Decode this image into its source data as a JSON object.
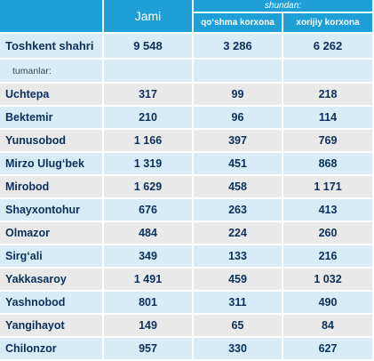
{
  "header": {
    "jami": "Jami",
    "shundan": "shundan:",
    "col_qoshma": "qo‘shma korxona",
    "col_xorijiy": "xorijiy korxona"
  },
  "total": {
    "name": "Toshkent shahri",
    "jami": "9 548",
    "qoshma": "3 286",
    "xorijiy": "6 262"
  },
  "section_label": "tumanlar:",
  "rows": [
    {
      "name": "Uchtepa",
      "jami": "317",
      "qoshma": "99",
      "xorijiy": "218"
    },
    {
      "name": "Bektemir",
      "jami": "210",
      "qoshma": "96",
      "xorijiy": "114"
    },
    {
      "name": "Yunusobod",
      "jami": "1 166",
      "qoshma": "397",
      "xorijiy": "769"
    },
    {
      "name": "Mirzo Ulug‘bek",
      "jami": "1 319",
      "qoshma": "451",
      "xorijiy": "868"
    },
    {
      "name": "Mirobod",
      "jami": "1 629",
      "qoshma": "458",
      "xorijiy": "1 171"
    },
    {
      "name": "Shayxontohur",
      "jami": "676",
      "qoshma": "263",
      "xorijiy": "413"
    },
    {
      "name": "Olmazor",
      "jami": "484",
      "qoshma": "224",
      "xorijiy": "260"
    },
    {
      "name": "Sirg‘ali",
      "jami": "349",
      "qoshma": "133",
      "xorijiy": "216"
    },
    {
      "name": "Yakkasaroy",
      "jami": "1 491",
      "qoshma": "459",
      "xorijiy": "1 032"
    },
    {
      "name": "Yashnobod",
      "jami": "801",
      "qoshma": "311",
      "xorijiy": "490"
    },
    {
      "name": "Yangihayot",
      "jami": "149",
      "qoshma": "65",
      "xorijiy": "84"
    },
    {
      "name": "Chilonzor",
      "jami": "957",
      "qoshma": "330",
      "xorijiy": "627"
    }
  ],
  "colors": {
    "header": "#1e9fd6",
    "row_blue": "#d8ecf7",
    "row_grey": "#e9e9ea",
    "text": "#0b2f5a"
  }
}
